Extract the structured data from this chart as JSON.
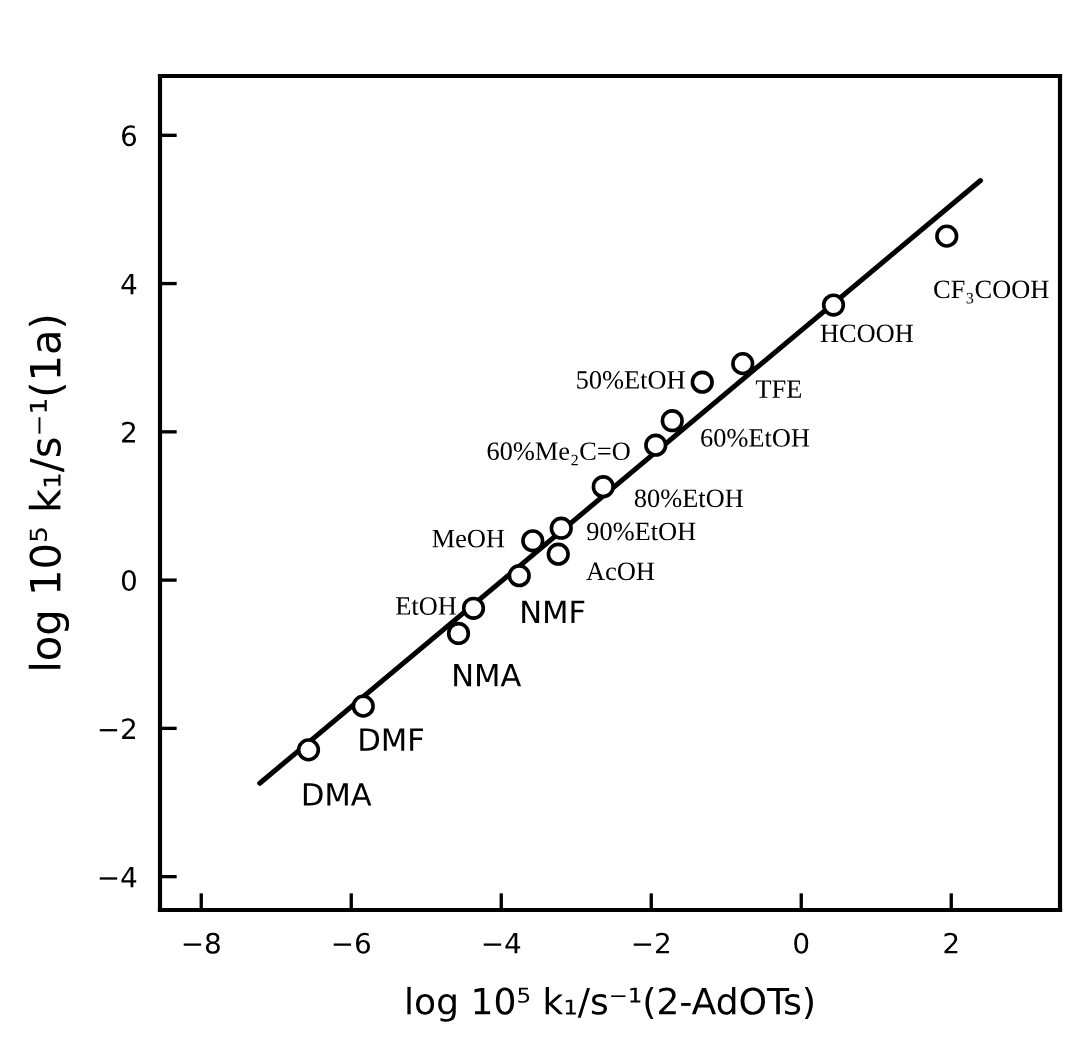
{
  "chart_data": {
    "type": "scatter",
    "xlabel": "log 10⁵ k₁/s⁻¹(2-AdOTs)",
    "ylabel": "log 10⁵ k₁/s⁻¹(1a)",
    "xlim": [
      -8.55,
      3.45
    ],
    "ylim": [
      -4.45,
      6.8
    ],
    "xticks": [
      -8,
      -6,
      -4,
      -2,
      0,
      2
    ],
    "yticks": [
      -4,
      -2,
      0,
      2,
      4,
      6
    ],
    "grid": false,
    "marker": "circle",
    "series": [
      {
        "color": "#000000",
        "x": [
          1.94,
          0.43,
          -0.78,
          -1.32,
          -1.72,
          -1.94,
          -2.64,
          -3.2,
          -3.58,
          -3.24,
          -3.76,
          -4.37,
          -4.57,
          -5.84,
          -6.57
        ],
        "values": [
          4.64,
          3.71,
          2.92,
          2.67,
          2.15,
          1.82,
          1.26,
          0.7,
          0.53,
          0.35,
          0.06,
          -0.38,
          -0.72,
          -1.7,
          -2.29
        ]
      },
      {
        "type": "line",
        "color": "#000000",
        "x": [
          -7.22,
          2.39
        ],
        "values": [
          -2.74,
          5.39
        ],
        "line_style": "solid",
        "marker": "none"
      }
    ],
    "annotations": [
      {
        "text": "CF₃COOH",
        "x": 1.94,
        "y": 4.64
      },
      {
        "text": "HCOOH",
        "x": 0.43,
        "y": 3.71
      },
      {
        "text": "TFE",
        "x": -0.78,
        "y": 2.92
      },
      {
        "text": "50%EtOH",
        "x": -1.32,
        "y": 2.67
      },
      {
        "text": "60%EtOH",
        "x": -1.72,
        "y": 2.15
      },
      {
        "text": "60%Me₂C=O",
        "x": -1.94,
        "y": 1.82
      },
      {
        "text": "80%EtOH",
        "x": -2.64,
        "y": 1.26
      },
      {
        "text": "90%EtOH",
        "x": -3.2,
        "y": 0.7
      },
      {
        "text": "MeOH",
        "x": -3.58,
        "y": 0.53
      },
      {
        "text": "AcOH",
        "x": -3.24,
        "y": 0.35
      },
      {
        "text": "NMF",
        "x": -3.76,
        "y": 0.06
      },
      {
        "text": "EtOH",
        "x": -4.37,
        "y": -0.38
      },
      {
        "text": "NMA",
        "x": -4.57,
        "y": -0.72
      },
      {
        "text": "DMF",
        "x": -5.84,
        "y": -1.7
      },
      {
        "text": "DMA",
        "x": -6.57,
        "y": -2.29
      }
    ]
  }
}
